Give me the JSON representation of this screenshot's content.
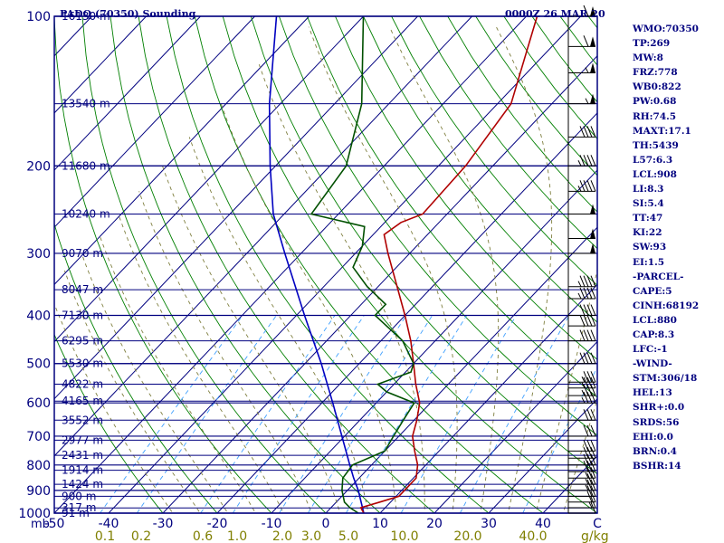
{
  "header": {
    "station": "PADQ (70350) Sounding",
    "time": "0000Z 26 MAR 20"
  },
  "stats": [
    "WMO:70350",
    "TP:269",
    "MW:8",
    "FRZ:778",
    "WB0:822",
    "PW:0.68",
    "RH:74.5",
    "MAXT:17.1",
    "TH:5439",
    "L57:6.3",
    "LCL:908",
    "LI:8.3",
    "SI:5.4",
    "TT:47",
    "KI:22",
    "SW:93",
    "EI:1.5",
    "-PARCEL-",
    "CAPE:5",
    "CINH:68192",
    "LCL:880",
    "CAP:8.3",
    "LFC:-1",
    "-WIND-",
    "STM:306/18",
    "HEL:13",
    "SHR+:0.0",
    "SRDS:56",
    "EHI:0.0",
    "BRN:0.4",
    "BSHR:14"
  ],
  "colors": {
    "frame": "#00007f",
    "isotherm": "#00007f",
    "dry_adiabat": "#007f00",
    "moist_adiabat": "#7f7f3f",
    "mixing_ratio": "#3fa0ff",
    "temperature": "#b00000",
    "dewpoint": "#005000",
    "parcel": "#0000c0",
    "wind": "#000000",
    "mixratio_label": "#7f7f00"
  },
  "chart_data": {
    "type": "skew-t",
    "x_label_unit": "mb",
    "pressure_axis": {
      "log_scale": true,
      "range": [
        1000,
        100
      ],
      "ticks": [
        "100",
        "200",
        "300",
        "400",
        "500",
        "600",
        "700",
        "800",
        "900",
        "1000"
      ]
    },
    "temperature_axis": {
      "range": [
        -50,
        50
      ],
      "ticks": [
        "-50",
        "-40",
        "-30",
        "-20",
        "-10",
        "0",
        "10",
        "20",
        "30",
        "40",
        "C"
      ]
    },
    "mixing_ratio_labels": [
      "0.1",
      "0.2",
      "0.6",
      "1.0",
      "2.0",
      "3.0",
      "5.0",
      "10.0",
      "20.0",
      "40.0"
    ],
    "mixing_ratio_unit": "g/kg",
    "height_levels": [
      {
        "p": 1000,
        "label": "91 m"
      },
      {
        "p": 976,
        "label": "317 m"
      },
      {
        "p": 925,
        "label": "900 m"
      },
      {
        "p": 875,
        "label": "1424 m"
      },
      {
        "p": 820,
        "label": "1914 m"
      },
      {
        "p": 765,
        "label": "2431 m"
      },
      {
        "p": 713,
        "label": "2977 m"
      },
      {
        "p": 650,
        "label": "3552 m"
      },
      {
        "p": 595,
        "label": "4165 m"
      },
      {
        "p": 550,
        "label": "4822 m"
      },
      {
        "p": 500,
        "label": "5530 m"
      },
      {
        "p": 450,
        "label": "6295 m"
      },
      {
        "p": 400,
        "label": "7130 m"
      },
      {
        "p": 355,
        "label": "8047 m"
      },
      {
        "p": 300,
        "label": "9070 m"
      },
      {
        "p": 250,
        "label": "10240 m"
      },
      {
        "p": 200,
        "label": "11680 m"
      },
      {
        "p": 150,
        "label": "13540 m"
      },
      {
        "p": 100,
        "label": "16130 m"
      }
    ],
    "temperature": [
      {
        "p": 1000,
        "t": 7.0
      },
      {
        "p": 975,
        "t": 5.5
      },
      {
        "p": 950,
        "t": 8.0
      },
      {
        "p": 925,
        "t": 10.5
      },
      {
        "p": 900,
        "t": 10.5
      },
      {
        "p": 850,
        "t": 10.5
      },
      {
        "p": 800,
        "t": 8.5
      },
      {
        "p": 750,
        "t": 5.5
      },
      {
        "p": 700,
        "t": 2.5
      },
      {
        "p": 650,
        "t": 0.5
      },
      {
        "p": 600,
        "t": -2.0
      },
      {
        "p": 550,
        "t": -6.0
      },
      {
        "p": 500,
        "t": -10.0
      },
      {
        "p": 450,
        "t": -14.5
      },
      {
        "p": 400,
        "t": -20.0
      },
      {
        "p": 350,
        "t": -26.5
      },
      {
        "p": 300,
        "t": -34.0
      },
      {
        "p": 275,
        "t": -38.0
      },
      {
        "p": 260,
        "t": -37.0
      },
      {
        "p": 250,
        "t": -34.5
      },
      {
        "p": 200,
        "t": -35.0
      },
      {
        "p": 150,
        "t": -37.5
      },
      {
        "p": 100,
        "t": -48.0
      }
    ],
    "dewpoint": [
      {
        "p": 1000,
        "t": 6.0
      },
      {
        "p": 975,
        "t": 3.5
      },
      {
        "p": 950,
        "t": 1.5
      },
      {
        "p": 900,
        "t": -1.0
      },
      {
        "p": 850,
        "t": -3.0
      },
      {
        "p": 800,
        "t": -3.5
      },
      {
        "p": 750,
        "t": 0.0
      },
      {
        "p": 700,
        "t": -1.0
      },
      {
        "p": 650,
        "t": -2.0
      },
      {
        "p": 600,
        "t": -3.0
      },
      {
        "p": 570,
        "t": -10.0
      },
      {
        "p": 550,
        "t": -13.0
      },
      {
        "p": 520,
        "t": -9.0
      },
      {
        "p": 500,
        "t": -10.0
      },
      {
        "p": 450,
        "t": -16.0
      },
      {
        "p": 400,
        "t": -25.5
      },
      {
        "p": 380,
        "t": -25.5
      },
      {
        "p": 350,
        "t": -32.0
      },
      {
        "p": 320,
        "t": -38.0
      },
      {
        "p": 290,
        "t": -40.0
      },
      {
        "p": 265,
        "t": -43.0
      },
      {
        "p": 250,
        "t": -55.0
      },
      {
        "p": 200,
        "t": -57.0
      },
      {
        "p": 150,
        "t": -65.0
      },
      {
        "p": 100,
        "t": -80.0
      }
    ],
    "parcel": [
      {
        "p": 1000,
        "t": 7.0
      },
      {
        "p": 900,
        "t": 2.0
      },
      {
        "p": 850,
        "t": -1.0
      },
      {
        "p": 800,
        "t": -4.0
      },
      {
        "p": 700,
        "t": -10.5
      },
      {
        "p": 600,
        "t": -18.0
      },
      {
        "p": 500,
        "t": -27.0
      },
      {
        "p": 400,
        "t": -38.5
      },
      {
        "p": 300,
        "t": -53.0
      },
      {
        "p": 250,
        "t": -62.0
      },
      {
        "p": 200,
        "t": -71.0
      },
      {
        "p": 150,
        "t": -82.0
      },
      {
        "p": 100,
        "t": -96.0
      }
    ],
    "wind": [
      {
        "p": 1000,
        "dir": 270,
        "kt": 10
      },
      {
        "p": 975,
        "dir": 270,
        "kt": 15
      },
      {
        "p": 950,
        "dir": 265,
        "kt": 20
      },
      {
        "p": 925,
        "dir": 265,
        "kt": 20
      },
      {
        "p": 900,
        "dir": 260,
        "kt": 25
      },
      {
        "p": 875,
        "dir": 260,
        "kt": 25
      },
      {
        "p": 850,
        "dir": 260,
        "kt": 25
      },
      {
        "p": 825,
        "dir": 265,
        "kt": 30
      },
      {
        "p": 800,
        "dir": 265,
        "kt": 30
      },
      {
        "p": 775,
        "dir": 265,
        "kt": 30
      },
      {
        "p": 750,
        "dir": 265,
        "kt": 30
      },
      {
        "p": 700,
        "dir": 270,
        "kt": 30
      },
      {
        "p": 650,
        "dir": 270,
        "kt": 30
      },
      {
        "p": 600,
        "dir": 275,
        "kt": 35
      },
      {
        "p": 580,
        "dir": 275,
        "kt": 35
      },
      {
        "p": 560,
        "dir": 275,
        "kt": 35
      },
      {
        "p": 545,
        "dir": 275,
        "kt": 35
      },
      {
        "p": 500,
        "dir": 275,
        "kt": 40
      },
      {
        "p": 450,
        "dir": 280,
        "kt": 40
      },
      {
        "p": 420,
        "dir": 280,
        "kt": 40
      },
      {
        "p": 400,
        "dir": 280,
        "kt": 40
      },
      {
        "p": 370,
        "dir": 280,
        "kt": 45
      },
      {
        "p": 350,
        "dir": 280,
        "kt": 45
      },
      {
        "p": 300,
        "dir": 280,
        "kt": 50
      },
      {
        "p": 280,
        "dir": 280,
        "kt": 50
      },
      {
        "p": 250,
        "dir": 285,
        "kt": 50
      },
      {
        "p": 225,
        "dir": 285,
        "kt": 45
      },
      {
        "p": 200,
        "dir": 285,
        "kt": 45
      },
      {
        "p": 175,
        "dir": 290,
        "kt": 40
      },
      {
        "p": 150,
        "dir": 290,
        "kt": 55
      },
      {
        "p": 130,
        "dir": 290,
        "kt": 55
      },
      {
        "p": 115,
        "dir": 290,
        "kt": 60
      },
      {
        "p": 100,
        "dir": 290,
        "kt": 60
      }
    ]
  }
}
